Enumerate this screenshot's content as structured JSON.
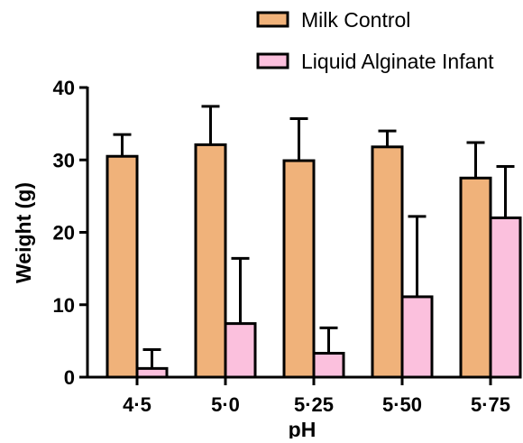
{
  "chart_data": {
    "type": "bar",
    "title": "",
    "xlabel": "pH",
    "ylabel": "Weight (g)",
    "categories": [
      "4·5",
      "5·0",
      "5·25",
      "5·50",
      "5·75"
    ],
    "ylim": [
      0,
      40
    ],
    "yticks": [
      0,
      10,
      20,
      30,
      40
    ],
    "grid": false,
    "legend_position": "top-right",
    "series": [
      {
        "name": "Milk Control",
        "color": "#F0B27A",
        "values": [
          30.5,
          32.1,
          29.9,
          31.8,
          27.5
        ],
        "error_upper": [
          3.0,
          5.3,
          5.8,
          2.2,
          4.9
        ]
      },
      {
        "name": "Liquid Alginate Infant",
        "color": "#FBC0DD",
        "values": [
          1.2,
          7.4,
          3.3,
          11.1,
          22.0
        ],
        "error_upper": [
          2.6,
          9.0,
          3.5,
          11.1,
          7.1
        ]
      }
    ]
  }
}
